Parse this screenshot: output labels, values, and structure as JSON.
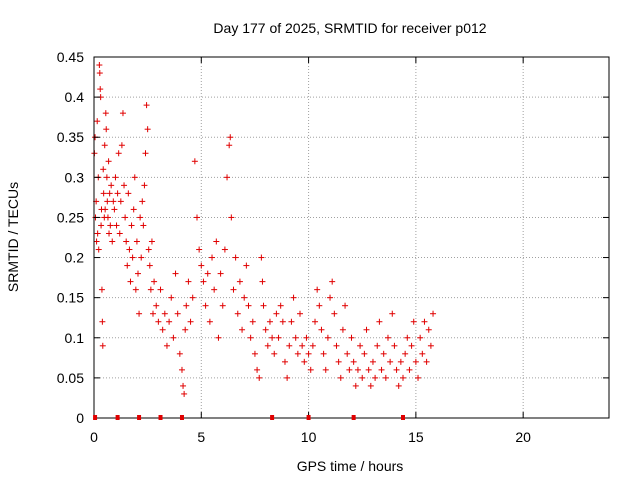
{
  "chart_data": {
    "type": "scatter",
    "title": "Day 177 of 2025, SRMTID for receiver p012",
    "xlabel": "GPS time / hours",
    "ylabel": "SRMTID / TECUs",
    "xlim": [
      0,
      24
    ],
    "ylim": [
      0,
      0.45
    ],
    "x_ticks": [
      0,
      5,
      10,
      15,
      20
    ],
    "y_ticks": [
      0,
      0.05,
      0.1,
      0.15,
      0.2,
      0.25,
      0.3,
      0.35,
      0.4,
      0.45
    ],
    "grid": true,
    "marker": "+",
    "colors": {
      "points": "#e00000",
      "grid": "#a0a0a0",
      "axes": "#000000",
      "background": "#ffffff"
    },
    "gap_markers_x": [
      0.05,
      1.1,
      2.1,
      3.1,
      4.1,
      8.3,
      10.0,
      12.1,
      14.4
    ],
    "series": [
      {
        "name": "p012",
        "points": [
          [
            0.02,
            0.33
          ],
          [
            0.05,
            0.35
          ],
          [
            0.07,
            0.25
          ],
          [
            0.1,
            0.27
          ],
          [
            0.12,
            0.22
          ],
          [
            0.15,
            0.37
          ],
          [
            0.17,
            0.23
          ],
          [
            0.2,
            0.3
          ],
          [
            0.22,
            0.21
          ],
          [
            0.25,
            0.44
          ],
          [
            0.27,
            0.43
          ],
          [
            0.29,
            0.41
          ],
          [
            0.31,
            0.4
          ],
          [
            0.33,
            0.24
          ],
          [
            0.35,
            0.26
          ],
          [
            0.37,
            0.16
          ],
          [
            0.39,
            0.12
          ],
          [
            0.41,
            0.09
          ],
          [
            0.43,
            0.31
          ],
          [
            0.45,
            0.28
          ],
          [
            0.48,
            0.25
          ],
          [
            0.5,
            0.34
          ],
          [
            0.52,
            0.26
          ],
          [
            0.55,
            0.38
          ],
          [
            0.57,
            0.36
          ],
          [
            0.6,
            0.3
          ],
          [
            0.62,
            0.27
          ],
          [
            0.65,
            0.25
          ],
          [
            0.68,
            0.32
          ],
          [
            0.7,
            0.23
          ],
          [
            0.73,
            0.28
          ],
          [
            0.76,
            0.24
          ],
          [
            0.8,
            0.29
          ],
          [
            0.85,
            0.22
          ],
          [
            0.9,
            0.27
          ],
          [
            0.95,
            0.26
          ],
          [
            1.0,
            0.3
          ],
          [
            1.05,
            0.24
          ],
          [
            1.1,
            0.28
          ],
          [
            1.15,
            0.33
          ],
          [
            1.2,
            0.23
          ],
          [
            1.25,
            0.27
          ],
          [
            1.3,
            0.34
          ],
          [
            1.35,
            0.38
          ],
          [
            1.4,
            0.29
          ],
          [
            1.45,
            0.25
          ],
          [
            1.5,
            0.22
          ],
          [
            1.55,
            0.19
          ],
          [
            1.6,
            0.28
          ],
          [
            1.65,
            0.21
          ],
          [
            1.7,
            0.17
          ],
          [
            1.75,
            0.24
          ],
          [
            1.8,
            0.2
          ],
          [
            1.85,
            0.26
          ],
          [
            1.9,
            0.3
          ],
          [
            1.95,
            0.16
          ],
          [
            2.0,
            0.22
          ],
          [
            2.05,
            0.18
          ],
          [
            2.1,
            0.13
          ],
          [
            2.15,
            0.25
          ],
          [
            2.2,
            0.2
          ],
          [
            2.25,
            0.27
          ],
          [
            2.3,
            0.24
          ],
          [
            2.35,
            0.29
          ],
          [
            2.4,
            0.33
          ],
          [
            2.45,
            0.39
          ],
          [
            2.5,
            0.36
          ],
          [
            2.55,
            0.21
          ],
          [
            2.6,
            0.19
          ],
          [
            2.65,
            0.16
          ],
          [
            2.7,
            0.22
          ],
          [
            2.75,
            0.13
          ],
          [
            2.8,
            0.17
          ],
          [
            2.9,
            0.14
          ],
          [
            3.0,
            0.12
          ],
          [
            3.1,
            0.16
          ],
          [
            3.2,
            0.11
          ],
          [
            3.3,
            0.13
          ],
          [
            3.4,
            0.09
          ],
          [
            3.5,
            0.12
          ],
          [
            3.6,
            0.15
          ],
          [
            3.7,
            0.1
          ],
          [
            3.8,
            0.18
          ],
          [
            3.9,
            0.13
          ],
          [
            4.0,
            0.08
          ],
          [
            4.1,
            0.06
          ],
          [
            4.15,
            0.04
          ],
          [
            4.2,
            0.03
          ],
          [
            4.25,
            0.11
          ],
          [
            4.3,
            0.14
          ],
          [
            4.4,
            0.17
          ],
          [
            4.5,
            0.12
          ],
          [
            4.6,
            0.15
          ],
          [
            4.7,
            0.32
          ],
          [
            4.8,
            0.25
          ],
          [
            4.9,
            0.21
          ],
          [
            5.0,
            0.19
          ],
          [
            5.1,
            0.17
          ],
          [
            5.2,
            0.14
          ],
          [
            5.3,
            0.18
          ],
          [
            5.4,
            0.12
          ],
          [
            5.5,
            0.2
          ],
          [
            5.6,
            0.16
          ],
          [
            5.7,
            0.22
          ],
          [
            5.8,
            0.1
          ],
          [
            5.9,
            0.18
          ],
          [
            6.0,
            0.14
          ],
          [
            6.1,
            0.21
          ],
          [
            6.2,
            0.3
          ],
          [
            6.3,
            0.34
          ],
          [
            6.35,
            0.35
          ],
          [
            6.4,
            0.25
          ],
          [
            6.5,
            0.16
          ],
          [
            6.6,
            0.2
          ],
          [
            6.7,
            0.13
          ],
          [
            6.8,
            0.17
          ],
          [
            6.9,
            0.11
          ],
          [
            7.0,
            0.15
          ],
          [
            7.1,
            0.19
          ],
          [
            7.2,
            0.14
          ],
          [
            7.3,
            0.1
          ],
          [
            7.4,
            0.12
          ],
          [
            7.5,
            0.08
          ],
          [
            7.6,
            0.06
          ],
          [
            7.7,
            0.05
          ],
          [
            7.8,
            0.2
          ],
          [
            7.85,
            0.17
          ],
          [
            7.9,
            0.14
          ],
          [
            8.0,
            0.11
          ],
          [
            8.1,
            0.09
          ],
          [
            8.2,
            0.12
          ],
          [
            8.3,
            0.1
          ],
          [
            8.4,
            0.08
          ],
          [
            8.5,
            0.13
          ],
          [
            8.6,
            0.1
          ],
          [
            8.7,
            0.14
          ],
          [
            8.8,
            0.12
          ],
          [
            8.9,
            0.07
          ],
          [
            9.0,
            0.05
          ],
          [
            9.1,
            0.09
          ],
          [
            9.2,
            0.12
          ],
          [
            9.3,
            0.15
          ],
          [
            9.4,
            0.1
          ],
          [
            9.5,
            0.08
          ],
          [
            9.6,
            0.13
          ],
          [
            9.7,
            0.09
          ],
          [
            9.8,
            0.07
          ],
          [
            9.9,
            0.1
          ],
          [
            10.0,
            0.08
          ],
          [
            10.1,
            0.06
          ],
          [
            10.2,
            0.09
          ],
          [
            10.3,
            0.12
          ],
          [
            10.4,
            0.16
          ],
          [
            10.5,
            0.14
          ],
          [
            10.6,
            0.11
          ],
          [
            10.7,
            0.08
          ],
          [
            10.8,
            0.06
          ],
          [
            10.9,
            0.1
          ],
          [
            11.0,
            0.15
          ],
          [
            11.1,
            0.17
          ],
          [
            11.2,
            0.13
          ],
          [
            11.3,
            0.09
          ],
          [
            11.4,
            0.07
          ],
          [
            11.5,
            0.05
          ],
          [
            11.6,
            0.11
          ],
          [
            11.7,
            0.14
          ],
          [
            11.8,
            0.08
          ],
          [
            11.9,
            0.06
          ],
          [
            12.0,
            0.1
          ],
          [
            12.1,
            0.07
          ],
          [
            12.2,
            0.04
          ],
          [
            12.3,
            0.06
          ],
          [
            12.4,
            0.09
          ],
          [
            12.5,
            0.05
          ],
          [
            12.6,
            0.08
          ],
          [
            12.7,
            0.11
          ],
          [
            12.8,
            0.06
          ],
          [
            12.9,
            0.04
          ],
          [
            13.0,
            0.07
          ],
          [
            13.1,
            0.05
          ],
          [
            13.2,
            0.09
          ],
          [
            13.3,
            0.12
          ],
          [
            13.4,
            0.06
          ],
          [
            13.5,
            0.08
          ],
          [
            13.6,
            0.05
          ],
          [
            13.7,
            0.1
          ],
          [
            13.8,
            0.07
          ],
          [
            13.9,
            0.13
          ],
          [
            14.0,
            0.09
          ],
          [
            14.1,
            0.06
          ],
          [
            14.2,
            0.04
          ],
          [
            14.3,
            0.07
          ],
          [
            14.4,
            0.05
          ],
          [
            14.5,
            0.08
          ],
          [
            14.6,
            0.1
          ],
          [
            14.7,
            0.06
          ],
          [
            14.8,
            0.09
          ],
          [
            14.9,
            0.12
          ],
          [
            15.0,
            0.07
          ],
          [
            15.1,
            0.05
          ],
          [
            15.2,
            0.1
          ],
          [
            15.3,
            0.08
          ],
          [
            15.4,
            0.12
          ],
          [
            15.5,
            0.07
          ],
          [
            15.6,
            0.11
          ],
          [
            15.7,
            0.09
          ],
          [
            15.8,
            0.13
          ]
        ]
      }
    ]
  }
}
